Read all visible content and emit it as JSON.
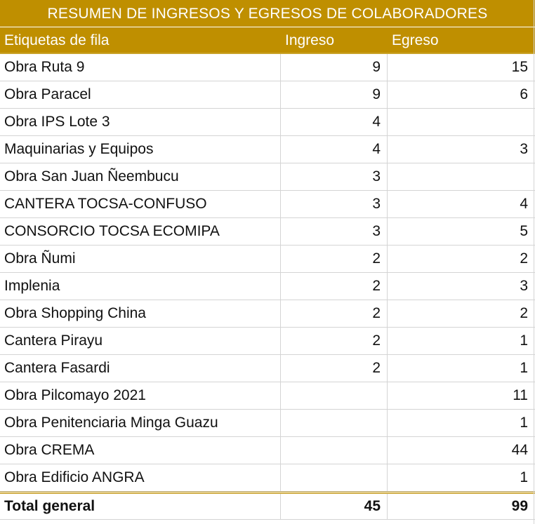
{
  "title": "RESUMEN DE INGRESOS Y EGRESOS DE COLABORADORES",
  "headers": {
    "label": "Etiquetas de fila",
    "ingreso": "Ingreso",
    "egreso": "Egreso"
  },
  "rows": [
    {
      "label": "Obra Ruta 9",
      "ingreso": "9",
      "egreso": "15"
    },
    {
      "label": "Obra Paracel",
      "ingreso": "9",
      "egreso": "6"
    },
    {
      "label": "Obra IPS Lote 3",
      "ingreso": "4",
      "egreso": ""
    },
    {
      "label": "Maquinarias y Equipos",
      "ingreso": "4",
      "egreso": "3"
    },
    {
      "label": "Obra San Juan Ñeembucu",
      "ingreso": "3",
      "egreso": ""
    },
    {
      "label": "CANTERA TOCSA-CONFUSO",
      "ingreso": "3",
      "egreso": "4"
    },
    {
      "label": "CONSORCIO TOCSA ECOMIPA",
      "ingreso": "3",
      "egreso": "5"
    },
    {
      "label": "Obra Ñumi",
      "ingreso": "2",
      "egreso": "2"
    },
    {
      "label": "Implenia",
      "ingreso": "2",
      "egreso": "3"
    },
    {
      "label": "Obra Shopping China",
      "ingreso": "2",
      "egreso": "2"
    },
    {
      "label": "Cantera Pirayu",
      "ingreso": "2",
      "egreso": "1"
    },
    {
      "label": "Cantera Fasardi",
      "ingreso": "2",
      "egreso": "1"
    },
    {
      "label": "Obra Pilcomayo 2021",
      "ingreso": "",
      "egreso": "11"
    },
    {
      "label": "Obra Penitenciaria Minga Guazu",
      "ingreso": "",
      "egreso": "1"
    },
    {
      "label": "Obra CREMA",
      "ingreso": "",
      "egreso": "44"
    },
    {
      "label": "Obra Edificio ANGRA",
      "ingreso": "",
      "egreso": "1"
    }
  ],
  "total": {
    "label": "Total general",
    "ingreso": "45",
    "egreso": "99"
  },
  "colors": {
    "header_bg": "#BF8F00",
    "header_text": "#ffffff",
    "grid": "#d4d4d4"
  }
}
